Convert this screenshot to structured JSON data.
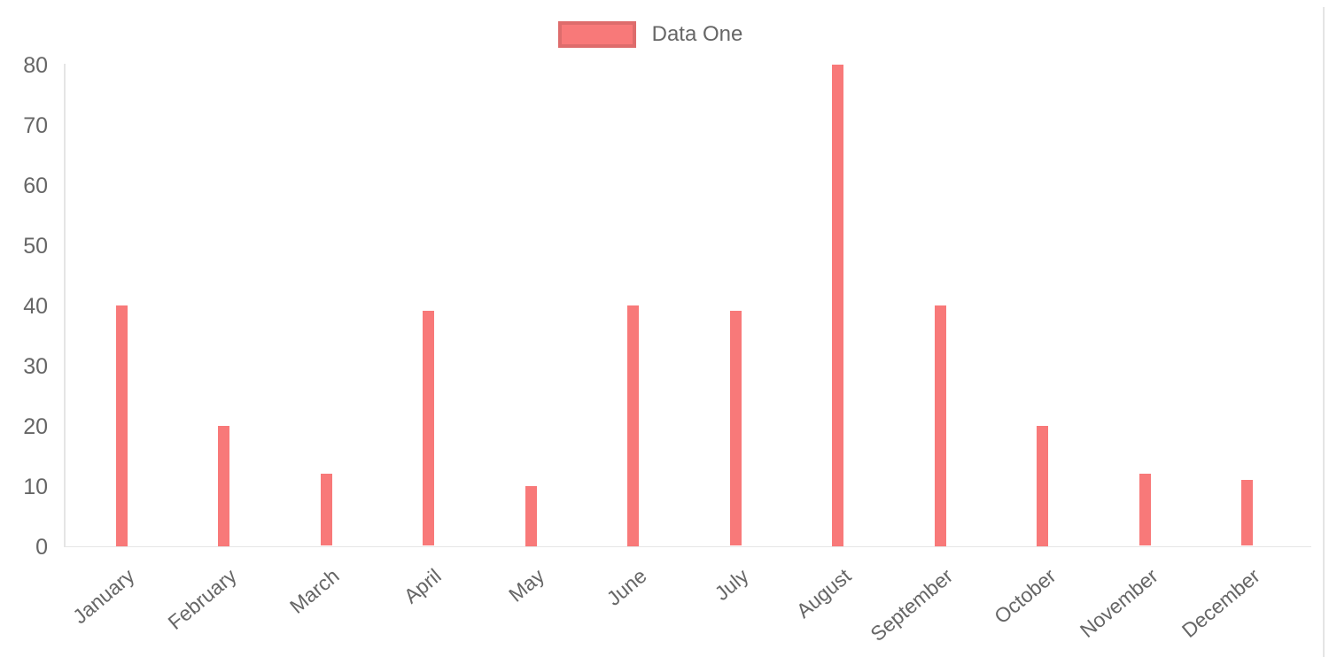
{
  "colors": {
    "bar": "#f87979",
    "axis_line": "rgba(0,0,0,0.1)",
    "tick_text": "#666666",
    "legend_border": "rgba(0,0,0,0.1)",
    "page_border": "#e5e5e5"
  },
  "chart_data": {
    "type": "bar",
    "title": "",
    "categories": [
      "January",
      "February",
      "March",
      "April",
      "May",
      "June",
      "July",
      "August",
      "September",
      "October",
      "November",
      "December"
    ],
    "series": [
      {
        "name": "Data One",
        "color": "#f87979",
        "values": [
          40,
          20,
          12,
          39,
          10,
          40,
          39,
          80,
          40,
          20,
          12,
          11
        ]
      }
    ],
    "xlabel": "",
    "ylabel": "",
    "ylim": [
      0,
      80
    ],
    "yticks": [
      0,
      10,
      20,
      30,
      40,
      50,
      60,
      70,
      80
    ],
    "grid": false,
    "legend_position": "top",
    "x_tick_rotation_deg": -40
  }
}
